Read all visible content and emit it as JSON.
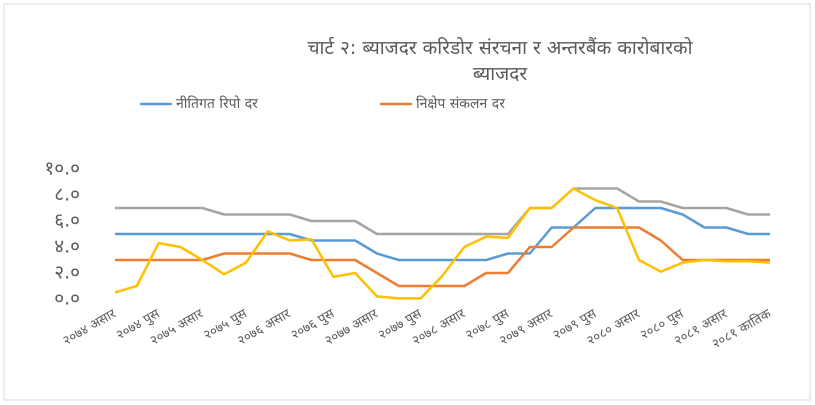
{
  "chart_data": {
    "type": "line",
    "title": "चार्ट २: ब्याजदर करिडोर संरचना र अन्तरबैंक कारोबारको ब्याजदर",
    "categories": [
      "२०७४ असार",
      null,
      "२०७४ पुस",
      null,
      "२०७५ असार",
      null,
      "२०७५ पुस",
      null,
      "२०७६ असार",
      null,
      "२०७६ पुस",
      null,
      "२०७७ असार",
      null,
      "२०७७ पुस",
      null,
      "२०७८ असार",
      null,
      "२०७८ पुस",
      null,
      "२०७९ असार",
      null,
      "२०७९ पुस",
      null,
      "२०८० असार",
      null,
      "२०८० पुस",
      null,
      "२०८१ असार",
      null,
      "२०८१ कातिक"
    ],
    "series": [
      {
        "name": "नीतिगत रिपो दर",
        "color": "#5b9bd5",
        "values": [
          5,
          5,
          5,
          5,
          5,
          5,
          5,
          5,
          5,
          4.5,
          4.5,
          4.5,
          3.5,
          3,
          3,
          3,
          3,
          3,
          3.5,
          3.5,
          5.5,
          5.5,
          7,
          7,
          7,
          7,
          6.5,
          5.5,
          5.5,
          5,
          5
        ]
      },
      {
        "name": "निक्षेप संकलन दर",
        "color": "#ed7d31",
        "values": [
          3,
          3,
          3,
          3,
          3,
          3.5,
          3.5,
          3.5,
          3.5,
          3,
          3,
          3,
          2,
          1,
          1,
          1,
          1,
          2,
          2,
          4,
          4,
          5.5,
          5.5,
          5.5,
          5.5,
          4.5,
          3,
          3,
          3,
          3,
          3
        ]
      },
      {
        "color": "#a5a5a5",
        "values": [
          7,
          7,
          7,
          7,
          7,
          6.5,
          6.5,
          6.5,
          6.5,
          6,
          6,
          6,
          5,
          5,
          5,
          5,
          5,
          5,
          5,
          7,
          7,
          8.5,
          8.5,
          8.5,
          7.5,
          7.5,
          7,
          7,
          7,
          6.5,
          6.5
        ]
      },
      {
        "color": "#ffc000",
        "values": [
          0.5,
          1,
          4.3,
          4,
          3,
          1.9,
          2.8,
          5.2,
          4.5,
          4.6,
          1.7,
          2,
          0.2,
          0.05,
          0.05,
          1.8,
          4,
          4.8,
          4.7,
          7,
          7,
          8.5,
          7.6,
          7,
          3,
          2.1,
          2.8,
          3,
          2.9,
          2.9,
          2.8
        ]
      }
    ],
    "ylim": [
      0,
      10
    ],
    "yticks": [
      {
        "value": 0,
        "label": "०.०"
      },
      {
        "value": 2,
        "label": "२.०"
      },
      {
        "value": 4,
        "label": "४.०"
      },
      {
        "value": 6,
        "label": "६.०"
      },
      {
        "value": 8,
        "label": "८.०"
      },
      {
        "value": 10,
        "label": "१०.०"
      }
    ],
    "grid": false
  }
}
